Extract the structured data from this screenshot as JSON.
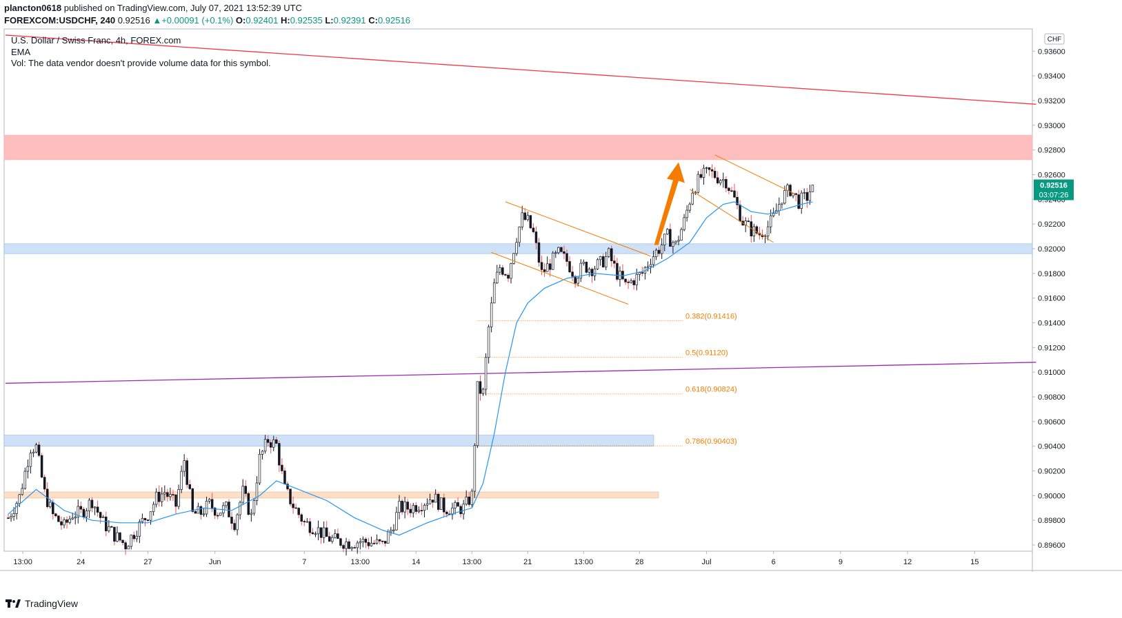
{
  "header": {
    "publisher": "plancton0618",
    "published_text": "published on TradingView.com, July 07, 2021 13:52:39 UTC",
    "symbol": "FOREXCOM:USDCHF, 240",
    "last": "0.92516",
    "change": "+0.00091 (+0.1%)",
    "o_label": "O:",
    "o": "0.92401",
    "h_label": "H:",
    "h": "0.92535",
    "l_label": "L:",
    "l": "0.92391",
    "c_label": "C:",
    "c": "0.92516"
  },
  "legend": {
    "title": "U.S. Dollar / Swiss Franc, 4h, FOREX.com",
    "ema": "EMA",
    "vol": "Vol: The data vendor doesn't provide volume data for this symbol."
  },
  "price_axis": {
    "currency": "CHF",
    "last_price": "0.92516",
    "countdown": "03:07:26"
  },
  "footer": {
    "brand": "TradingView"
  },
  "colors": {
    "up": "#26a69a",
    "down": "#ef5350",
    "candle": "#131722",
    "ema": "#2196f3",
    "trend_red": "#f23645",
    "trend_purple": "#9c27b0",
    "fib": "#f57c00",
    "zone_red": "#ffb3b3",
    "zone_blue": "#c7dcf5",
    "zone_orange": "#fcd9bd",
    "arrow": "#f57c00",
    "price_tag": "#089981"
  },
  "chart_data": {
    "type": "candlestick",
    "symbol": "USDCHF",
    "timeframe": "4h",
    "ylim": [
      0.8955,
      0.9378
    ],
    "y_ticks": [
      0.936,
      0.934,
      0.932,
      0.93,
      0.928,
      0.926,
      0.924,
      0.922,
      0.92,
      0.918,
      0.916,
      0.914,
      0.912,
      0.91,
      0.908,
      0.906,
      0.904,
      0.902,
      0.9,
      0.898,
      0.896
    ],
    "y_tick_labels": [
      "0.93600",
      "0.93400",
      "0.93200",
      "0.93000",
      "0.92800",
      "0.92600",
      "0.92400",
      "0.92200",
      "0.92000",
      "0.91800",
      "0.91600",
      "0.91400",
      "0.91200",
      "0.91000",
      "0.90800",
      "0.90600",
      "0.90400",
      "0.90200",
      "0.90000",
      "0.89800",
      "0.89600"
    ],
    "x_ticks": [
      "13:00",
      "24",
      "27",
      "Jun",
      "7",
      "13:00",
      "14",
      "13:00",
      "21",
      "13:00",
      "28",
      "Jul",
      "6",
      "9",
      "12",
      "15"
    ],
    "x_tick_bar_index": [
      2,
      26,
      50,
      74,
      106,
      126,
      146,
      166,
      186,
      206,
      226,
      250,
      274,
      298,
      322,
      346
    ],
    "fib_levels": [
      {
        "label": "0.382(0.91416)",
        "value": 0.91416
      },
      {
        "label": "0.5(0.91120)",
        "value": 0.9112
      },
      {
        "label": "0.618(0.90824)",
        "value": 0.90824
      },
      {
        "label": "0.786(0.90403)",
        "value": 0.90403
      }
    ],
    "zones": [
      {
        "name": "resistance",
        "y1": 0.9272,
        "y2": 0.9292
      },
      {
        "name": "support-high",
        "y1": 0.9196,
        "y2": 0.9204
      },
      {
        "name": "support-mid",
        "y1": 0.904,
        "y2": 0.9049
      },
      {
        "name": "support-low",
        "y1": 0.8998,
        "y2": 0.9003
      }
    ],
    "trendlines": [
      {
        "name": "red-trend",
        "from": [
          -1,
          0.9373
        ],
        "to": [
          368,
          0.9317
        ]
      },
      {
        "name": "purple-trend",
        "from": [
          -1,
          0.9091
        ],
        "to": [
          368,
          0.9108
        ]
      }
    ],
    "close_path": [
      [
        0,
        0.8982
      ],
      [
        4,
        0.8999
      ],
      [
        8,
        0.9039
      ],
      [
        10,
        0.9039
      ],
      [
        13,
        0.9002
      ],
      [
        16,
        0.8984
      ],
      [
        20,
        0.8975
      ],
      [
        23,
        0.8985
      ],
      [
        26,
        0.8986
      ],
      [
        30,
        0.8996
      ],
      [
        34,
        0.8978
      ],
      [
        38,
        0.8968
      ],
      [
        42,
        0.896
      ],
      [
        46,
        0.8973
      ],
      [
        50,
        0.8985
      ],
      [
        53,
        0.8998
      ],
      [
        56,
        0.9003
      ],
      [
        60,
        0.8992
      ],
      [
        63,
        0.9029
      ],
      [
        66,
        0.8985
      ],
      [
        69,
        0.8986
      ],
      [
        72,
        0.8993
      ],
      [
        75,
        0.8987
      ],
      [
        78,
        0.899
      ],
      [
        81,
        0.8978
      ],
      [
        84,
        0.9003
      ],
      [
        87,
        0.8983
      ],
      [
        90,
        0.903
      ],
      [
        93,
        0.9045
      ],
      [
        96,
        0.9041
      ],
      [
        99,
        0.9005
      ],
      [
        102,
        0.8992
      ],
      [
        106,
        0.8978
      ],
      [
        110,
        0.8974
      ],
      [
        114,
        0.8966
      ],
      [
        118,
        0.8963
      ],
      [
        122,
        0.8962
      ],
      [
        126,
        0.8963
      ],
      [
        130,
        0.8962
      ],
      [
        134,
        0.896
      ],
      [
        137,
        0.8972
      ],
      [
        140,
        0.899
      ],
      [
        144,
        0.899
      ],
      [
        148,
        0.8994
      ],
      [
        152,
        0.8999
      ],
      [
        156,
        0.899
      ],
      [
        160,
        0.8989
      ],
      [
        163,
        0.899
      ],
      [
        166,
        0.9
      ],
      [
        168,
        0.9087
      ],
      [
        170,
        0.9083
      ],
      [
        172,
        0.9136
      ],
      [
        174,
        0.917
      ],
      [
        176,
        0.9185
      ],
      [
        179,
        0.918
      ],
      [
        182,
        0.921
      ],
      [
        184,
        0.9225
      ],
      [
        186,
        0.9222
      ],
      [
        188,
        0.9212
      ],
      [
        191,
        0.918
      ],
      [
        194,
        0.9188
      ],
      [
        197,
        0.9196
      ],
      [
        200,
        0.919
      ],
      [
        203,
        0.9178
      ],
      [
        206,
        0.9186
      ],
      [
        209,
        0.9184
      ],
      [
        212,
        0.9188
      ],
      [
        215,
        0.9195
      ],
      [
        218,
        0.918
      ],
      [
        221,
        0.917
      ],
      [
        224,
        0.9175
      ],
      [
        227,
        0.918
      ],
      [
        230,
        0.9192
      ],
      [
        233,
        0.92
      ],
      [
        236,
        0.921
      ],
      [
        239,
        0.9203
      ],
      [
        242,
        0.9222
      ],
      [
        245,
        0.9248
      ],
      [
        248,
        0.9258
      ],
      [
        251,
        0.9262
      ],
      [
        254,
        0.9258
      ],
      [
        257,
        0.9255
      ],
      [
        260,
        0.924
      ],
      [
        263,
        0.9222
      ],
      [
        266,
        0.9215
      ],
      [
        269,
        0.9212
      ],
      [
        272,
        0.9218
      ],
      [
        274,
        0.9225
      ],
      [
        277,
        0.9242
      ],
      [
        280,
        0.9248
      ],
      [
        283,
        0.9238
      ],
      [
        286,
        0.9242
      ],
      [
        288,
        0.9252
      ]
    ],
    "ema_path": [
      [
        0,
        0.8985
      ],
      [
        10,
        0.9005
      ],
      [
        20,
        0.8988
      ],
      [
        30,
        0.898
      ],
      [
        40,
        0.8978
      ],
      [
        50,
        0.8978
      ],
      [
        60,
        0.8985
      ],
      [
        70,
        0.899
      ],
      [
        80,
        0.8988
      ],
      [
        90,
        0.9
      ],
      [
        96,
        0.9012
      ],
      [
        104,
        0.9005
      ],
      [
        114,
        0.8996
      ],
      [
        124,
        0.8982
      ],
      [
        134,
        0.8972
      ],
      [
        140,
        0.8968
      ],
      [
        150,
        0.8978
      ],
      [
        160,
        0.8986
      ],
      [
        166,
        0.899
      ],
      [
        170,
        0.901
      ],
      [
        174,
        0.905
      ],
      [
        178,
        0.91
      ],
      [
        182,
        0.914
      ],
      [
        186,
        0.9156
      ],
      [
        192,
        0.9168
      ],
      [
        200,
        0.9176
      ],
      [
        210,
        0.918
      ],
      [
        220,
        0.9178
      ],
      [
        228,
        0.9182
      ],
      [
        236,
        0.9192
      ],
      [
        244,
        0.9205
      ],
      [
        250,
        0.9225
      ],
      [
        256,
        0.9236
      ],
      [
        260,
        0.9238
      ],
      [
        266,
        0.923
      ],
      [
        272,
        0.9228
      ],
      [
        278,
        0.9232
      ],
      [
        284,
        0.9236
      ],
      [
        288,
        0.9238
      ]
    ],
    "channels": [
      {
        "from": [
          178,
          0.9238
        ],
        "to": [
          230,
          0.9194
        ]
      },
      {
        "from": [
          173,
          0.9197
        ],
        "to": [
          222,
          0.9155
        ]
      },
      {
        "from": [
          253,
          0.9276
        ],
        "to": [
          282,
          0.9244
        ]
      },
      {
        "from": [
          244,
          0.9248
        ],
        "to": [
          274,
          0.9205
        ]
      }
    ],
    "fib_start_bar": 168,
    "arrow": {
      "from": [
        232,
        0.9203
      ],
      "to": [
        240,
        0.927
      ]
    }
  }
}
